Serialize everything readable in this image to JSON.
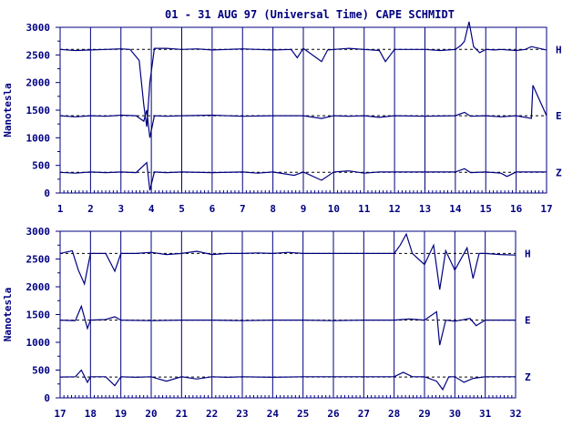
{
  "title": "01 - 31 AUG 97 (Universal Time) CAPE SCHMIDT",
  "ylabel": "Nanotesla",
  "colors": {
    "ink": "#000080",
    "background": "#ffffff"
  },
  "chart_data": [
    {
      "type": "line",
      "panel": "top",
      "title": "01 - 31 AUG 97 (Universal Time) CAPE SCHMIDT",
      "ylabel": "Nanotesla",
      "xlim": [
        1,
        17
      ],
      "ylim": [
        0,
        3000
      ],
      "xticks": [
        "1",
        "2",
        "3",
        "4",
        "5",
        "6",
        "7",
        "8",
        "9",
        "10",
        "11",
        "12",
        "13",
        "14",
        "15",
        "16",
        "17"
      ],
      "yticks": [
        "0",
        "500",
        "1000",
        "1500",
        "2000",
        "2500",
        "3000"
      ],
      "grid": "vertical lines at each day",
      "baseline_style": "dashed",
      "series": [
        {
          "name": "H",
          "baseline": 2600,
          "x": [
            1,
            1.5,
            2,
            2.5,
            3,
            3.3,
            3.6,
            3.75,
            3.85,
            3.95,
            4.1,
            4.5,
            5,
            5.5,
            6,
            6.5,
            7,
            7.5,
            8,
            8.6,
            8.8,
            9,
            9.6,
            9.8,
            10,
            10.5,
            11,
            11.5,
            11.7,
            12,
            12.5,
            13,
            13.5,
            14,
            14.2,
            14.3,
            14.45,
            14.6,
            14.8,
            15,
            15.3,
            15.5,
            16,
            16.3,
            16.5,
            17
          ],
          "values": [
            2600,
            2580,
            2590,
            2600,
            2610,
            2600,
            2400,
            1600,
            1200,
            2000,
            2620,
            2620,
            2600,
            2610,
            2590,
            2600,
            2610,
            2600,
            2590,
            2600,
            2450,
            2620,
            2380,
            2590,
            2600,
            2620,
            2600,
            2580,
            2380,
            2600,
            2600,
            2600,
            2580,
            2600,
            2680,
            2750,
            3100,
            2650,
            2540,
            2600,
            2590,
            2600,
            2580,
            2600,
            2650,
            2590
          ]
        },
        {
          "name": "E",
          "baseline": 1400,
          "x": [
            1,
            1.5,
            2,
            2.5,
            3,
            3.5,
            3.75,
            3.85,
            3.95,
            4.1,
            4.5,
            5,
            6,
            7,
            8,
            9,
            9.6,
            10,
            10.5,
            11,
            11.5,
            12,
            13,
            14,
            14.3,
            14.5,
            15,
            15.5,
            16,
            16.5,
            16.55,
            17
          ],
          "values": [
            1400,
            1380,
            1400,
            1390,
            1410,
            1400,
            1300,
            1500,
            1000,
            1400,
            1390,
            1400,
            1410,
            1390,
            1400,
            1400,
            1350,
            1400,
            1390,
            1400,
            1370,
            1400,
            1390,
            1400,
            1460,
            1390,
            1400,
            1380,
            1400,
            1350,
            1950,
            1400
          ]
        },
        {
          "name": "Z",
          "baseline": 375,
          "x": [
            1,
            1.5,
            2,
            2.5,
            3,
            3.5,
            3.75,
            3.85,
            3.95,
            4.1,
            4.5,
            5,
            6,
            7,
            7.5,
            8,
            8.7,
            9,
            9.6,
            10,
            10.5,
            11,
            11.5,
            12,
            13,
            14,
            14.3,
            14.5,
            15,
            15.5,
            15.7,
            16,
            16.5,
            17
          ],
          "values": [
            375,
            360,
            380,
            370,
            380,
            370,
            500,
            550,
            50,
            380,
            370,
            380,
            370,
            380,
            360,
            380,
            320,
            380,
            230,
            380,
            400,
            360,
            380,
            380,
            380,
            380,
            440,
            370,
            380,
            360,
            300,
            380,
            380,
            380
          ]
        }
      ]
    },
    {
      "type": "line",
      "panel": "bottom",
      "ylabel": "Nanotesla",
      "xlim": [
        17,
        32
      ],
      "ylim": [
        0,
        3000
      ],
      "xticks": [
        "17",
        "18",
        "19",
        "20",
        "21",
        "22",
        "23",
        "24",
        "25",
        "26",
        "27",
        "28",
        "29",
        "30",
        "31",
        "32"
      ],
      "yticks": [
        "0",
        "500",
        "1000",
        "1500",
        "2000",
        "2500",
        "3000"
      ],
      "grid": "vertical lines at each day",
      "baseline_style": "dashed",
      "series": [
        {
          "name": "H",
          "baseline": 2600,
          "x": [
            17,
            17.4,
            17.6,
            17.8,
            18,
            18.5,
            18.8,
            19,
            19.5,
            20,
            20.5,
            21,
            21.5,
            22,
            22.5,
            23,
            23.5,
            24,
            24.5,
            25,
            26,
            27,
            28,
            28.2,
            28.4,
            28.6,
            29,
            29.3,
            29.5,
            29.7,
            30,
            30.4,
            30.6,
            30.8,
            31,
            31.5,
            32
          ],
          "values": [
            2600,
            2650,
            2300,
            2050,
            2600,
            2600,
            2280,
            2600,
            2600,
            2620,
            2580,
            2600,
            2640,
            2580,
            2600,
            2600,
            2610,
            2600,
            2620,
            2600,
            2600,
            2600,
            2600,
            2750,
            2950,
            2600,
            2400,
            2750,
            1950,
            2650,
            2300,
            2700,
            2150,
            2600,
            2600,
            2580,
            2570
          ]
        },
        {
          "name": "E",
          "baseline": 1400,
          "x": [
            17,
            17.5,
            17.7,
            17.9,
            18,
            18.5,
            18.8,
            19,
            20,
            21,
            22,
            23,
            24,
            25,
            26,
            27,
            28,
            28.5,
            29,
            29.4,
            29.5,
            29.7,
            30,
            30.5,
            30.7,
            31,
            32
          ],
          "values": [
            1400,
            1390,
            1650,
            1250,
            1400,
            1410,
            1460,
            1400,
            1390,
            1400,
            1400,
            1390,
            1400,
            1400,
            1390,
            1400,
            1400,
            1420,
            1400,
            1550,
            950,
            1400,
            1380,
            1430,
            1300,
            1400,
            1400
          ]
        },
        {
          "name": "Z",
          "baseline": 375,
          "x": [
            17,
            17.5,
            17.7,
            17.9,
            18,
            18.5,
            18.8,
            19,
            19.5,
            20,
            20.5,
            21,
            21.5,
            22,
            22.5,
            23,
            24,
            25,
            26,
            27,
            28,
            28.3,
            28.6,
            29,
            29.4,
            29.6,
            29.8,
            30,
            30.3,
            30.6,
            31,
            32
          ],
          "values": [
            375,
            380,
            500,
            280,
            380,
            380,
            220,
            380,
            370,
            380,
            300,
            380,
            340,
            380,
            370,
            380,
            370,
            380,
            380,
            380,
            380,
            460,
            380,
            380,
            300,
            150,
            380,
            380,
            280,
            350,
            380,
            380
          ]
        }
      ]
    }
  ]
}
